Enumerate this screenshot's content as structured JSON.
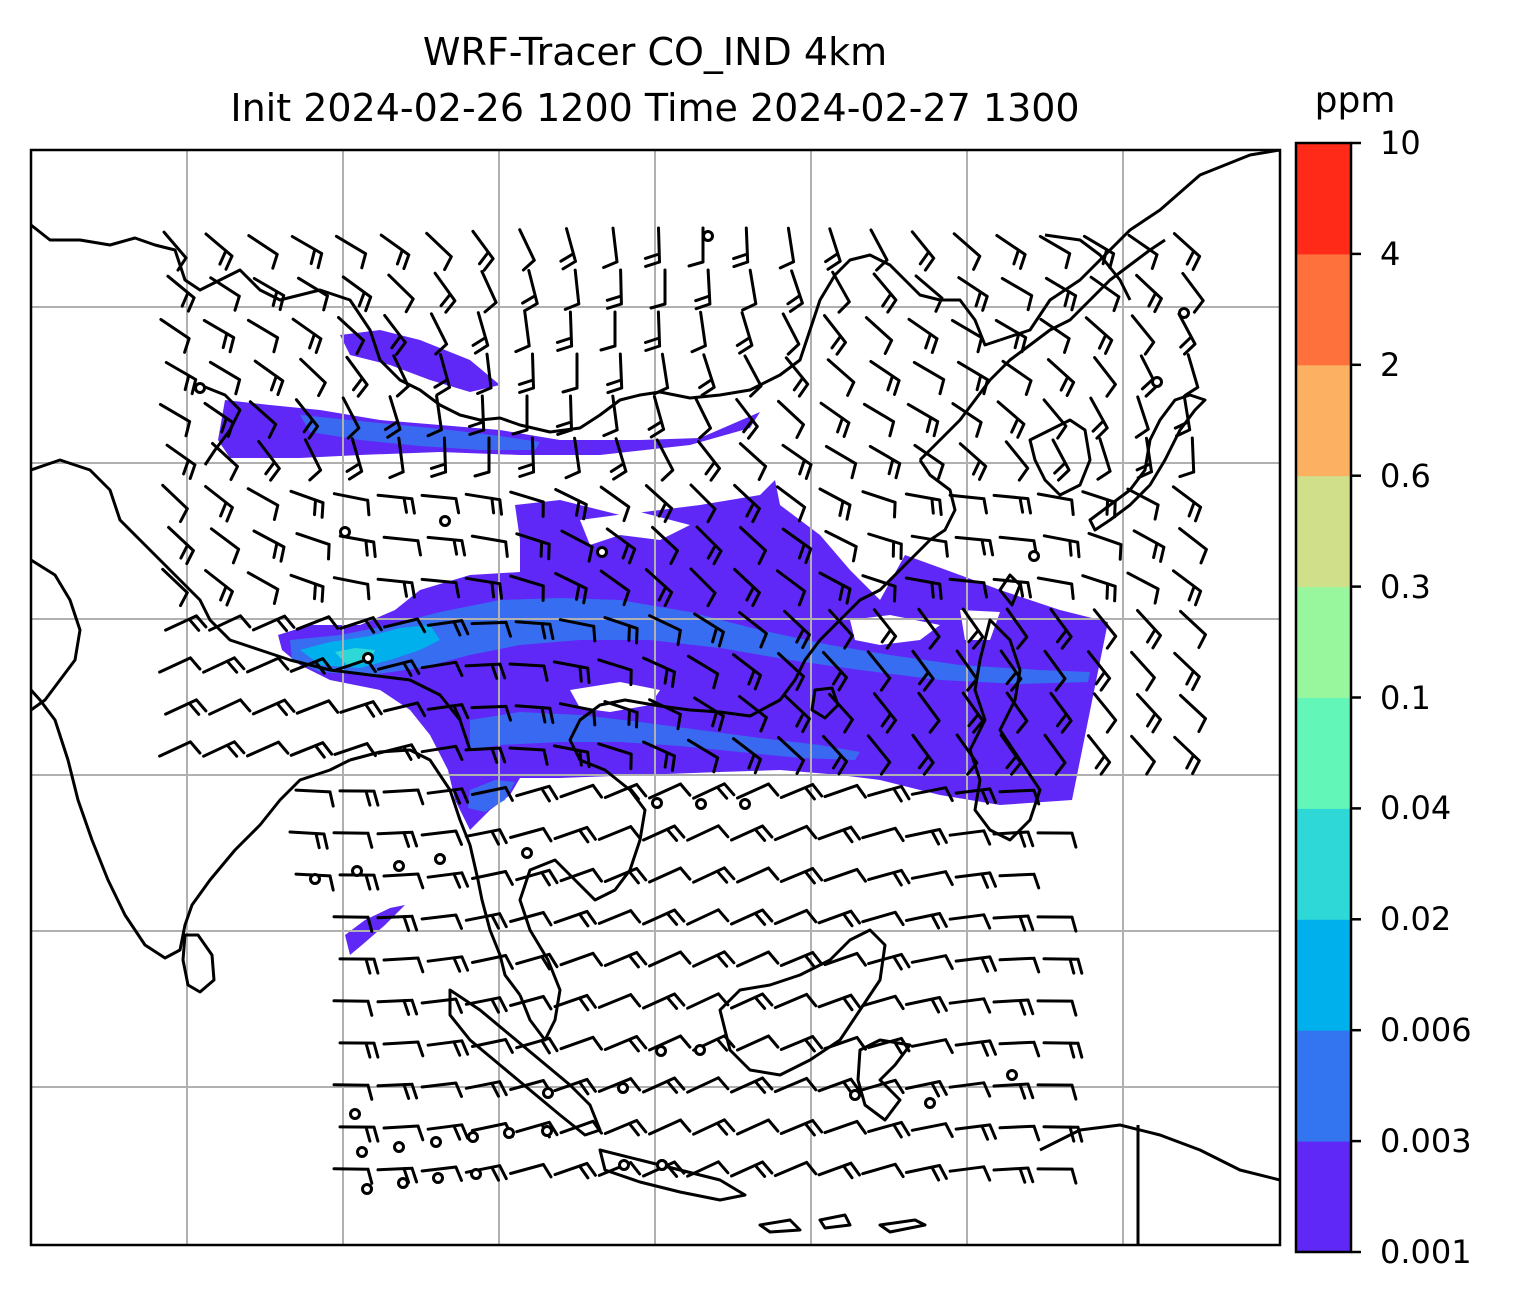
{
  "title": {
    "line1": "WRF-Tracer CO_IND 4km",
    "line2": "Init 2024-02-26 1200 Time 2024-02-27 1300"
  },
  "colorbar": {
    "unit": "ppm",
    "ticks": [
      "0.001",
      "0.003",
      "0.006",
      "0.02",
      "0.04",
      "0.1",
      "0.3",
      "0.6",
      "2",
      "4",
      "10"
    ],
    "colors": [
      "#6028f6",
      "#3374f0",
      "#00b0ec",
      "#2ed8d6",
      "#62f7b8",
      "#98f79c",
      "#d0e08a",
      "#fcb062",
      "#fe703c",
      "#ff2a18"
    ]
  },
  "map": {
    "gridlines": true,
    "projection": "lat-lon",
    "field": "CO tracer concentration with wind barbs",
    "colors": {
      "grid": "#b0b0b0",
      "coast": "#000000",
      "barbs": "#000000"
    }
  }
}
